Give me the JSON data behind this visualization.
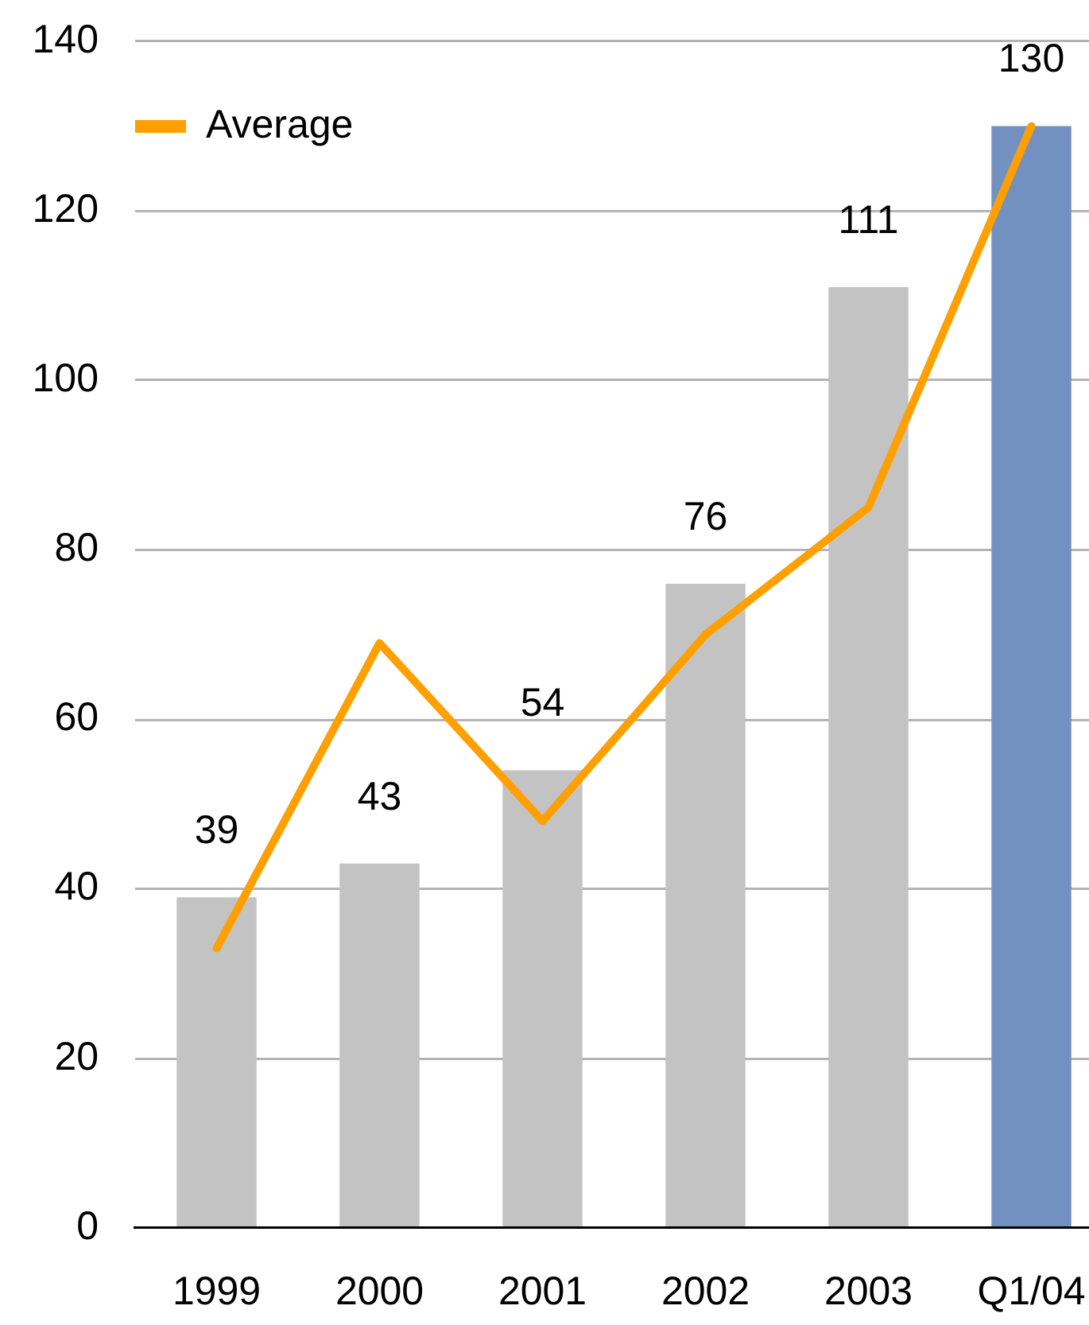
{
  "chart_data": {
    "type": "bar",
    "categories": [
      "1999",
      "2000",
      "2001",
      "2002",
      "2003",
      "Q1/04"
    ],
    "series": [
      {
        "values": [
          39,
          43,
          54,
          76,
          111,
          130
        ],
        "colors": [
          "#c3c3c3",
          "#c3c3c3",
          "#c3c3c3",
          "#c3c3c3",
          "#c3c3c3",
          "#7391c0"
        ],
        "value_labels": [
          "39",
          "43",
          "54",
          "76",
          "111",
          "130"
        ]
      },
      {
        "type": "line",
        "name": "Average",
        "color": "#ff9f00",
        "values": [
          33,
          69,
          48,
          70,
          85,
          130
        ]
      }
    ],
    "ylim": [
      0,
      140
    ],
    "yticks": [
      0,
      20,
      40,
      60,
      80,
      100,
      120,
      140
    ],
    "grid": "y",
    "legend": "top left",
    "marker": "none"
  }
}
